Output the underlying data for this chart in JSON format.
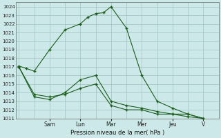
{
  "title": "Pression niveau de la mer( hPa )",
  "bg_color": "#cce8e8",
  "plot_bg_color": "#cce8e8",
  "grid_color": "#a0c0c0",
  "line_color": "#1a5c1a",
  "marker_color": "#1a5c1a",
  "ylim": [
    1011,
    1024.5
  ],
  "yticks": [
    1011,
    1012,
    1013,
    1014,
    1015,
    1016,
    1017,
    1018,
    1019,
    1020,
    1021,
    1022,
    1023,
    1024
  ],
  "x_tick_labels": [
    "Sam",
    "Lun",
    "Mar",
    "Mer",
    "Jeu",
    "V"
  ],
  "x_tick_positions": [
    2,
    4,
    6,
    8,
    10,
    12
  ],
  "xlim": [
    -0.2,
    13.0
  ],
  "series": [
    {
      "x": [
        0,
        0.5,
        1,
        2,
        3,
        4,
        4.5,
        5,
        5.5,
        6,
        7,
        8,
        9,
        10,
        11,
        12
      ],
      "y": [
        1017.1,
        1016.8,
        1016.5,
        1019.0,
        1021.3,
        1022.0,
        1022.8,
        1023.2,
        1023.3,
        1024.0,
        1021.5,
        1016.0,
        1013.0,
        1012.2,
        1011.5,
        1011.0
      ]
    },
    {
      "x": [
        0,
        1,
        2,
        3,
        4,
        5,
        6,
        7,
        8,
        9,
        10,
        11,
        12
      ],
      "y": [
        1017.0,
        1013.8,
        1013.5,
        1013.8,
        1014.5,
        1015.0,
        1012.5,
        1012.0,
        1012.0,
        1011.5,
        1011.5,
        1011.5,
        1011.0
      ]
    },
    {
      "x": [
        0,
        1,
        2,
        3,
        4,
        5,
        6,
        7,
        8,
        9,
        10,
        11,
        12
      ],
      "y": [
        1017.0,
        1013.5,
        1013.2,
        1014.0,
        1015.5,
        1016.0,
        1013.0,
        1012.5,
        1012.2,
        1011.8,
        1011.5,
        1011.2,
        1011.0
      ]
    }
  ]
}
